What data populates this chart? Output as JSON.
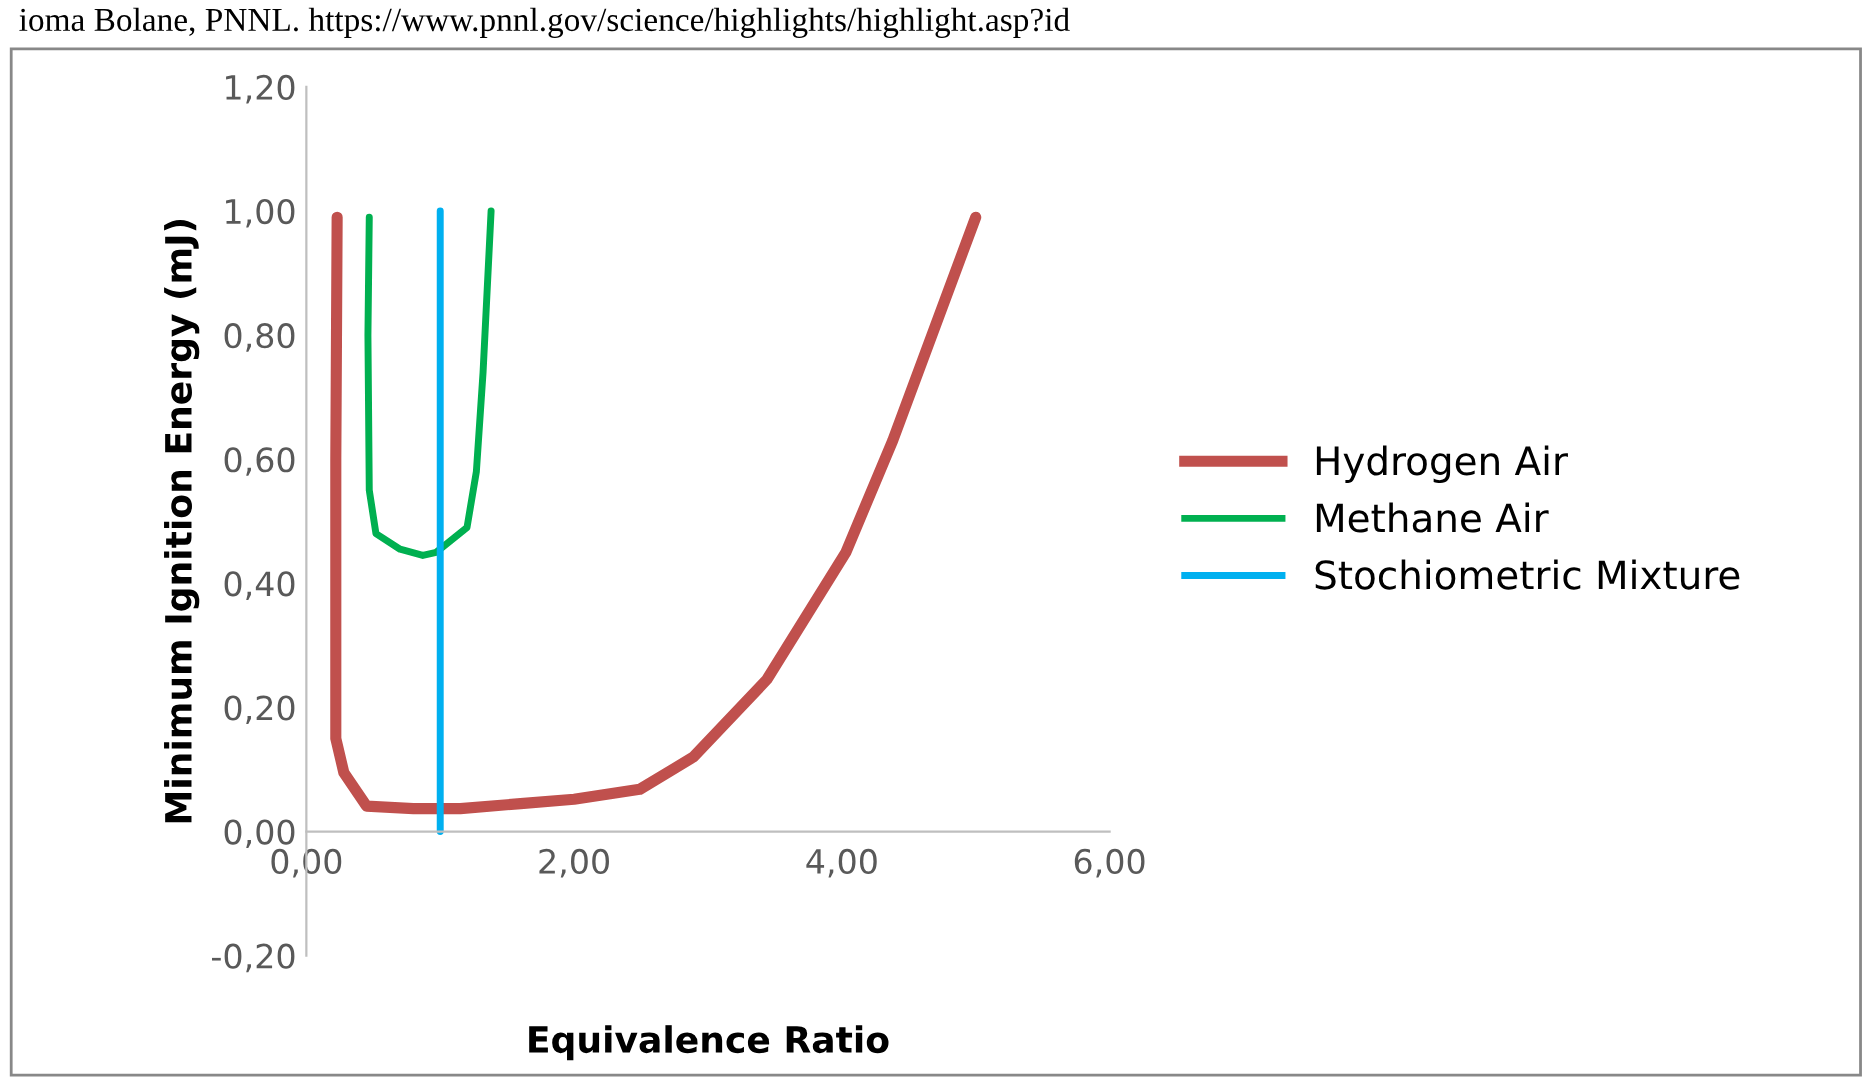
{
  "chart_data": {
    "type": "line",
    "xlabel": "Equivalence Ratio",
    "ylabel": "Minimum Ignition Energy (mJ)",
    "annotations": [
      "ioma Bolane, PNNL. https://www.pnnl.gov/science/highlights/highlight.asp?id"
    ],
    "series": [
      {
        "name": "Hydrogen Air",
        "color": "#c0504d",
        "x": [
          0.23,
          0.22,
          0.22,
          0.28,
          0.45,
          0.8,
          1.15,
          1.6,
          2.0,
          2.49,
          2.89,
          3.44,
          4.03,
          4.38,
          5.0
        ],
        "values": [
          0.99,
          0.6,
          0.15,
          0.095,
          0.041,
          0.037,
          0.037,
          0.045,
          0.052,
          0.068,
          0.12,
          0.245,
          0.45,
          0.63,
          0.99
        ]
      },
      {
        "name": "Methane Air",
        "color": "#00b050",
        "x": [
          0.47,
          0.46,
          0.47,
          0.52,
          0.7,
          0.87,
          0.97,
          1.2,
          1.27,
          1.32,
          1.38
        ],
        "values": [
          0.99,
          0.8,
          0.55,
          0.48,
          0.455,
          0.445,
          0.45,
          0.49,
          0.58,
          0.74,
          1.0
        ]
      },
      {
        "name": "Stochiometric Mixture",
        "color": "#00b0f0",
        "x": [
          1.0,
          1.0
        ],
        "values": [
          0.0,
          1.0
        ]
      }
    ],
    "xlim": [
      0,
      6
    ],
    "ylim": [
      -0.2,
      1.2
    ],
    "xticks": [
      {
        "value": 0,
        "label": "0,00"
      },
      {
        "value": 2,
        "label": "2,00"
      },
      {
        "value": 4,
        "label": "4,00"
      },
      {
        "value": 6,
        "label": "6,00"
      }
    ],
    "yticks": [
      {
        "value": -0.2,
        "label": "-0,20"
      },
      {
        "value": 0,
        "label": "0,00"
      },
      {
        "value": 0.2,
        "label": "0,20"
      },
      {
        "value": 0.4,
        "label": "0,40"
      },
      {
        "value": 0.6,
        "label": "0,60"
      },
      {
        "value": 0.8,
        "label": "0,80"
      },
      {
        "value": 1.0,
        "label": "1,00"
      },
      {
        "value": 1.2,
        "label": "1,20"
      }
    ],
    "grid": false,
    "legend": "right",
    "marker": "none",
    "line_style": "solid"
  }
}
